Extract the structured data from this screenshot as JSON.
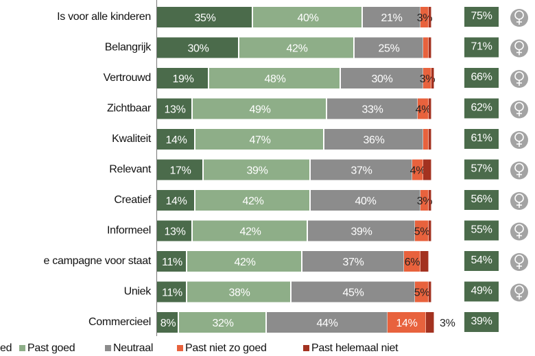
{
  "chart_data": {
    "type": "stacked-bar-horizontal",
    "categories": [
      "Is voor alle kinderen",
      "Belangrijk",
      "Vertrouwd",
      "Zichtbaar",
      "Kwaliteit",
      "Relevant",
      "Creatief",
      "Informeel",
      "e campagne voor staat",
      "Uniek",
      "Commercieel"
    ],
    "series": [
      {
        "name": "ed",
        "color": "#4b6b4b",
        "values": [
          35,
          30,
          19,
          13,
          14,
          17,
          14,
          13,
          11,
          11,
          8
        ],
        "value_labels": [
          "35%",
          "30%",
          "19%",
          "13%",
          "14%",
          "17%",
          "14%",
          "13%",
          "11%",
          "11%",
          "8%"
        ]
      },
      {
        "name": "Past goed",
        "color": "#8eae88",
        "values": [
          40,
          42,
          48,
          49,
          47,
          39,
          42,
          42,
          42,
          38,
          32
        ],
        "value_labels": [
          "40%",
          "42%",
          "48%",
          "49%",
          "47%",
          "39%",
          "42%",
          "42%",
          "42%",
          "38%",
          "32%"
        ]
      },
      {
        "name": "Neutraal",
        "color": "#8c8c8c",
        "values": [
          21,
          25,
          30,
          33,
          36,
          37,
          40,
          39,
          37,
          45,
          44
        ],
        "value_labels": [
          "21%",
          "25%",
          "30%",
          "33%",
          "36%",
          "37%",
          "40%",
          "39%",
          "37%",
          "45%",
          "44%"
        ]
      },
      {
        "name": "Past niet zo goed",
        "color": "#e8623d",
        "values": [
          3,
          2,
          3,
          4,
          2,
          4,
          3,
          5,
          6,
          5,
          14
        ],
        "value_labels": [
          "3%",
          null,
          "3%",
          "4%",
          null,
          "4%",
          "3%",
          "5%",
          "6%",
          "5%",
          "14%"
        ]
      },
      {
        "name": "Past helemaal niet",
        "color": "#a33220",
        "values": [
          1,
          1,
          1,
          1,
          1,
          3,
          1,
          1,
          3,
          1,
          3
        ],
        "value_labels": [
          null,
          null,
          null,
          null,
          null,
          null,
          null,
          null,
          null,
          null,
          "3%"
        ]
      }
    ],
    "xlim": [
      0,
      100
    ],
    "totals": {
      "color": "#4b6b4b",
      "values": [
        75,
        71,
        66,
        62,
        61,
        57,
        56,
        55,
        54,
        49,
        39
      ],
      "value_labels": [
        "75%",
        "71%",
        "66%",
        "62%",
        "61%",
        "57%",
        "56%",
        "55%",
        "54%",
        "49%",
        "39%"
      ]
    }
  }
}
